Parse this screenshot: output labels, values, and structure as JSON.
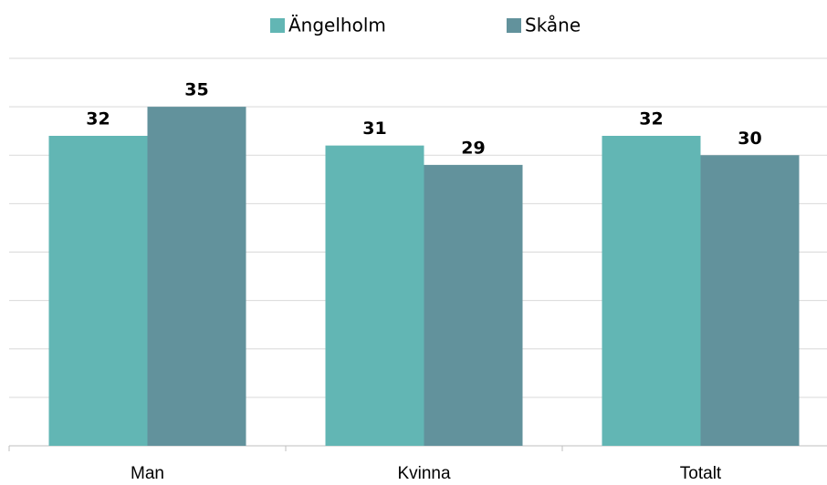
{
  "chart_data": {
    "type": "bar",
    "categories": [
      "Man",
      "Kvinna",
      "Totalt"
    ],
    "series": [
      {
        "name": "Ängelholm",
        "color": "#62b6b4",
        "values": [
          32,
          31,
          32
        ]
      },
      {
        "name": "Skåne",
        "color": "#62929c",
        "values": [
          35,
          29,
          30
        ]
      }
    ],
    "ylim": [
      0,
      40
    ],
    "yticks": [
      0,
      5,
      10,
      15,
      20,
      25,
      30,
      35,
      40
    ],
    "grid": true,
    "legend": "top"
  }
}
